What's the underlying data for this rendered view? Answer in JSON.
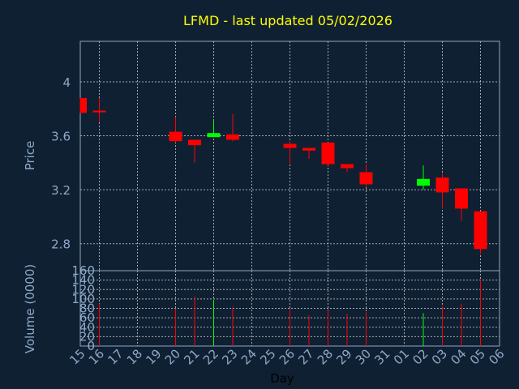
{
  "chart_data": {
    "type": "candlestick",
    "title": "LFMD - last updated 05/02/2026",
    "xlabel": "Day",
    "price_axis": {
      "label": "Price",
      "ylim": [
        2.6,
        4.3
      ],
      "ticks": [
        "2.8",
        "3.2",
        "3.6",
        "4"
      ],
      "tick_values": [
        2.8,
        3.2,
        3.6,
        4.0
      ]
    },
    "volume_axis": {
      "label": "Volume (0000)",
      "ylim": [
        0,
        160
      ],
      "ticks": [
        "0",
        "20",
        "40",
        "60",
        "80",
        "100",
        "120",
        "140",
        "160"
      ],
      "tick_values": [
        0,
        20,
        40,
        60,
        80,
        100,
        120,
        140,
        160
      ]
    },
    "x_labels": [
      "15",
      "16",
      "17",
      "18",
      "19",
      "20",
      "21",
      "22",
      "23",
      "24",
      "25",
      "26",
      "27",
      "28",
      "29",
      "30",
      "31",
      "01",
      "02",
      "03",
      "04",
      "05",
      "06"
    ],
    "grid": true,
    "colors": {
      "up": "#00ff00",
      "down": "#ff0000",
      "background": "#0f2033",
      "text": "#8ea8c6",
      "title": "#ffff00"
    },
    "candles": [
      {
        "day": "15",
        "open": 3.88,
        "high": 3.88,
        "low": 3.77,
        "close": 3.77
      },
      {
        "day": "16",
        "open": 3.78,
        "high": 3.88,
        "low": 3.7,
        "close": 3.77
      },
      {
        "day": "20",
        "open": 3.63,
        "high": 3.74,
        "low": 3.55,
        "close": 3.56
      },
      {
        "day": "21",
        "open": 3.57,
        "high": 3.57,
        "low": 3.4,
        "close": 3.53
      },
      {
        "day": "22",
        "open": 3.59,
        "high": 3.72,
        "low": 3.59,
        "close": 3.62
      },
      {
        "day": "23",
        "open": 3.61,
        "high": 3.76,
        "low": 3.56,
        "close": 3.57
      },
      {
        "day": "26",
        "open": 3.54,
        "high": 3.56,
        "low": 3.39,
        "close": 3.51
      },
      {
        "day": "27",
        "open": 3.51,
        "high": 3.51,
        "low": 3.43,
        "close": 3.49
      },
      {
        "day": "28",
        "open": 3.55,
        "high": 3.55,
        "low": 3.38,
        "close": 3.39
      },
      {
        "day": "29",
        "open": 3.39,
        "high": 3.39,
        "low": 3.33,
        "close": 3.36
      },
      {
        "day": "30",
        "open": 3.33,
        "high": 3.39,
        "low": 3.22,
        "close": 3.24
      },
      {
        "day": "02",
        "open": 3.23,
        "high": 3.38,
        "low": 3.2,
        "close": 3.28
      },
      {
        "day": "03",
        "open": 3.29,
        "high": 3.32,
        "low": 3.06,
        "close": 3.18
      },
      {
        "day": "04",
        "open": 3.21,
        "high": 3.21,
        "low": 2.97,
        "close": 3.06
      },
      {
        "day": "05",
        "open": 3.04,
        "high": 3.04,
        "low": 2.72,
        "close": 2.76
      }
    ],
    "volume": [
      {
        "day": "16",
        "value": 90,
        "color": "down"
      },
      {
        "day": "20",
        "value": 80,
        "color": "down"
      },
      {
        "day": "21",
        "value": 105,
        "color": "down"
      },
      {
        "day": "22",
        "value": 98,
        "color": "up"
      },
      {
        "day": "23",
        "value": 83,
        "color": "down"
      },
      {
        "day": "26",
        "value": 80,
        "color": "down"
      },
      {
        "day": "27",
        "value": 65,
        "color": "down"
      },
      {
        "day": "28",
        "value": 76,
        "color": "down"
      },
      {
        "day": "29",
        "value": 68,
        "color": "down"
      },
      {
        "day": "30",
        "value": 72,
        "color": "down"
      },
      {
        "day": "02",
        "value": 70,
        "color": "up"
      },
      {
        "day": "03",
        "value": 85,
        "color": "down"
      },
      {
        "day": "04",
        "value": 90,
        "color": "down"
      },
      {
        "day": "05",
        "value": 140,
        "color": "down"
      }
    ]
  }
}
